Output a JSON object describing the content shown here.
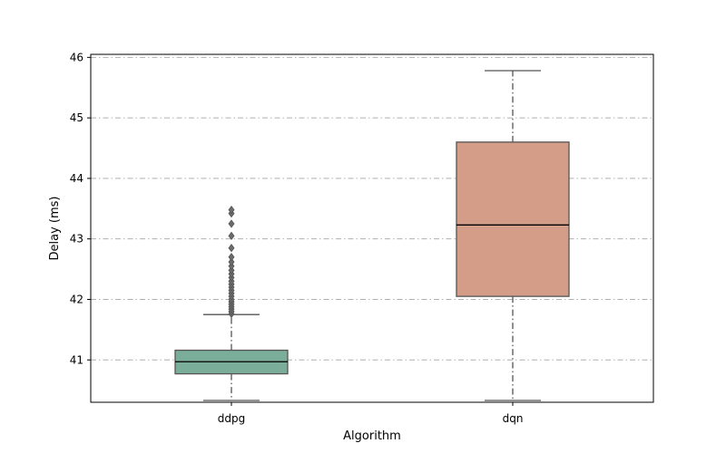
{
  "chart_data": {
    "type": "box",
    "title": "",
    "xlabel": "Algorithm",
    "ylabel": "Delay (ms)",
    "ylim": [
      40.3,
      46.05
    ],
    "yticks": [
      41,
      42,
      43,
      44,
      45,
      46
    ],
    "grid": "y",
    "categories": [
      "ddpg",
      "dqn"
    ],
    "boxes": [
      {
        "name": "ddpg",
        "color": "#7aad9a",
        "whisker_low": 40.33,
        "q1": 40.77,
        "median": 40.97,
        "q3": 41.16,
        "whisker_high": 41.75,
        "outliers": [
          41.76,
          41.8,
          41.84,
          41.88,
          41.92,
          41.96,
          42.0,
          42.05,
          42.1,
          42.15,
          42.2,
          42.25,
          42.3,
          42.36,
          42.42,
          42.48,
          42.55,
          42.62,
          42.7,
          42.85,
          43.05,
          43.25,
          43.42,
          43.48
        ]
      },
      {
        "name": "dqn",
        "color": "#d49d88",
        "whisker_low": 40.33,
        "q1": 42.05,
        "median": 43.23,
        "q3": 44.6,
        "whisker_high": 45.78,
        "outliers": []
      }
    ]
  }
}
